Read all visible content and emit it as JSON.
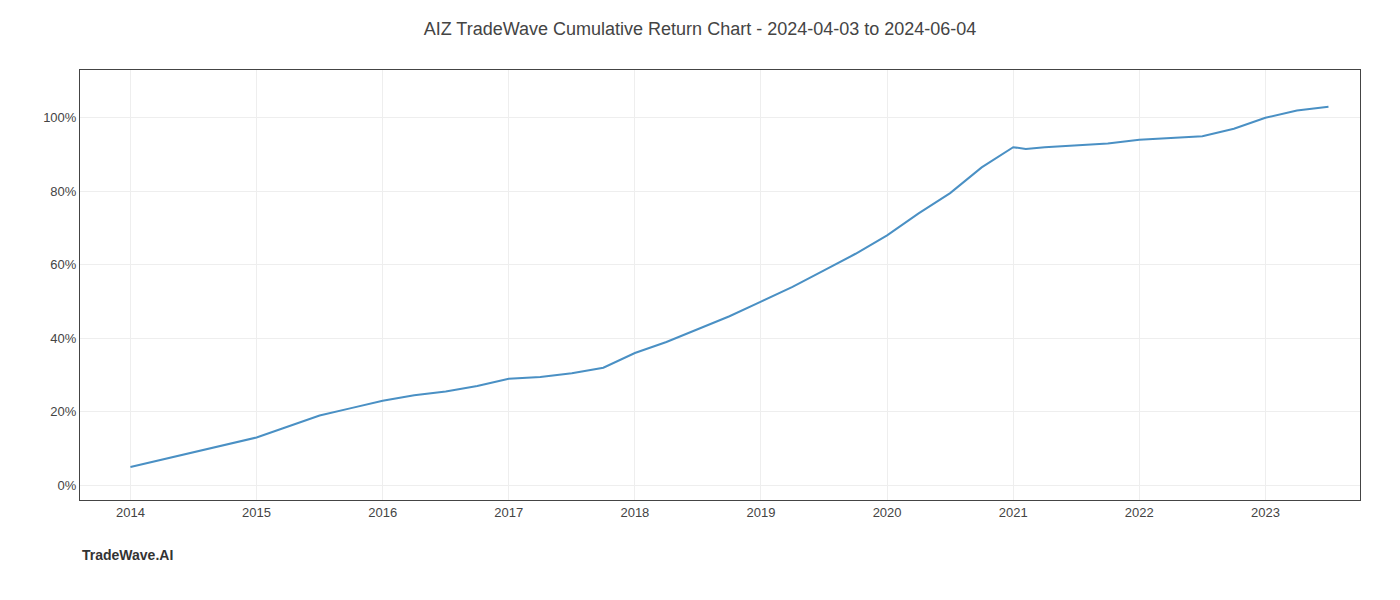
{
  "chart_data": {
    "type": "line",
    "title": "AIZ TradeWave Cumulative Return Chart - 2024-04-03 to 2024-06-04",
    "annotations": [
      "TradeWave.AI"
    ],
    "x": [
      2014.0,
      2014.25,
      2014.5,
      2014.75,
      2015.0,
      2015.25,
      2015.5,
      2015.75,
      2016.0,
      2016.25,
      2016.5,
      2016.75,
      2017.0,
      2017.25,
      2017.5,
      2017.75,
      2018.0,
      2018.25,
      2018.5,
      2018.75,
      2019.0,
      2019.25,
      2019.5,
      2019.75,
      2020.0,
      2020.25,
      2020.5,
      2020.75,
      2021.0,
      2021.1,
      2021.25,
      2021.5,
      2021.75,
      2022.0,
      2022.25,
      2022.5,
      2022.75,
      2023.0,
      2023.25,
      2023.5
    ],
    "values": [
      0.05,
      0.07,
      0.09,
      0.11,
      0.13,
      0.16,
      0.19,
      0.21,
      0.23,
      0.245,
      0.255,
      0.27,
      0.29,
      0.295,
      0.305,
      0.32,
      0.36,
      0.39,
      0.425,
      0.46,
      0.5,
      0.54,
      0.585,
      0.63,
      0.68,
      0.74,
      0.795,
      0.865,
      0.92,
      0.915,
      0.92,
      0.925,
      0.93,
      0.94,
      0.945,
      0.95,
      0.97,
      1.0,
      1.02,
      1.03
    ],
    "color": "#4a90c4",
    "xlim": [
      2013.6,
      2023.75
    ],
    "xticks": [
      2014,
      2015,
      2016,
      2017,
      2018,
      2019,
      2020,
      2021,
      2022,
      2023
    ],
    "ylim": [
      -0.04,
      1.13
    ],
    "yticks": [
      {
        "value": 0.0,
        "label": "0%"
      },
      {
        "value": 0.2,
        "label": "20%"
      },
      {
        "value": 0.4,
        "label": "40%"
      },
      {
        "value": 0.6,
        "label": "60%"
      },
      {
        "value": 0.8,
        "label": "80%"
      },
      {
        "value": 1.0,
        "label": "100%"
      }
    ],
    "grid": true
  }
}
